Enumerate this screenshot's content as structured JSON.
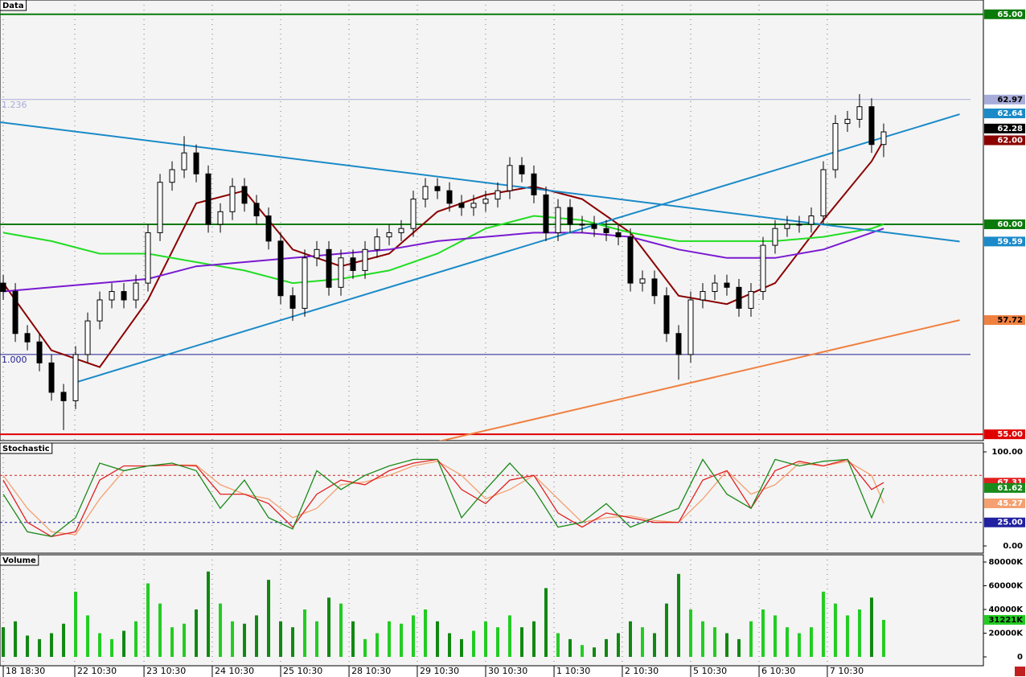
{
  "chart_data": [
    {
      "type": "candlestick",
      "title": "Data",
      "xlim": [
        -0.27,
        81.27
      ],
      "ylim": [
        54.85,
        65.34
      ],
      "xticks": [
        {
          "value": 0,
          "label": "18 18:30"
        },
        {
          "value": 5.93,
          "label": "22 10:30"
        },
        {
          "value": 11.67,
          "label": "23 10:30"
        },
        {
          "value": 17.33,
          "label": "24 10:30"
        },
        {
          "value": 23,
          "label": "25 10:30"
        },
        {
          "value": 28.67,
          "label": "28 10:30"
        },
        {
          "value": 34.33,
          "label": "29 10:30"
        },
        {
          "value": 40,
          "label": "30 10:30"
        },
        {
          "value": 45.67,
          "label": "1 10:30"
        },
        {
          "value": 51.33,
          "label": "2 10:30"
        },
        {
          "value": 57,
          "label": "5 10:30"
        },
        {
          "value": 62.67,
          "label": "6 10:30"
        },
        {
          "value": 68.33,
          "label": "7 10:30"
        }
      ],
      "open": [
        58.6,
        58.4,
        57.4,
        57.2,
        56.7,
        56.0,
        55.8,
        56.9,
        57.7,
        58.2,
        58.4,
        58.2,
        58.6,
        59.8,
        61.0,
        61.3,
        61.7,
        61.2,
        60.0,
        60.3,
        60.9,
        60.5,
        60.2,
        59.6,
        58.3,
        58.0,
        59.2,
        59.4,
        58.5,
        59.2,
        58.9,
        59.4,
        59.7,
        59.8,
        59.9,
        60.6,
        60.9,
        60.8,
        60.5,
        60.4,
        60.5,
        60.6,
        60.8,
        61.4,
        61.2,
        60.7,
        59.8,
        60.4,
        60.0,
        60.0,
        59.9,
        59.8,
        59.7,
        58.6,
        58.7,
        58.3,
        57.4,
        56.9,
        58.2,
        58.4,
        58.6,
        58.5,
        58.0,
        58.4,
        59.5,
        59.9,
        60.0,
        60.0,
        60.2,
        61.3,
        62.4,
        62.5,
        62.8,
        61.9
      ],
      "high": [
        58.8,
        58.6,
        57.6,
        57.4,
        56.9,
        56.2,
        57.1,
        57.9,
        58.4,
        58.6,
        58.6,
        58.8,
        60.0,
        61.2,
        61.5,
        62.1,
        61.9,
        61.4,
        60.5,
        61.1,
        61.1,
        60.7,
        60.4,
        59.8,
        58.5,
        59.4,
        59.6,
        59.6,
        59.4,
        59.4,
        59.6,
        59.9,
        60.0,
        60.1,
        60.8,
        61.1,
        61.1,
        61.0,
        60.7,
        60.7,
        60.8,
        61.0,
        61.6,
        61.6,
        61.4,
        60.9,
        60.6,
        60.6,
        60.2,
        60.2,
        60.1,
        60.0,
        59.9,
        58.9,
        58.9,
        58.5,
        57.6,
        58.4,
        58.6,
        58.8,
        58.8,
        58.7,
        58.6,
        59.7,
        60.1,
        60.2,
        60.2,
        60.4,
        61.5,
        62.6,
        62.7,
        63.1,
        63.0,
        62.4
      ],
      "low": [
        58.2,
        57.2,
        57.0,
        56.5,
        55.8,
        55.1,
        55.6,
        56.7,
        57.5,
        58.0,
        58.0,
        58.0,
        58.4,
        59.6,
        60.8,
        61.1,
        61.0,
        59.8,
        59.8,
        60.1,
        60.3,
        60.0,
        59.4,
        58.1,
        57.7,
        57.8,
        59.0,
        58.3,
        58.3,
        58.7,
        58.7,
        59.2,
        59.5,
        59.6,
        59.7,
        60.4,
        60.6,
        60.3,
        60.2,
        60.2,
        60.3,
        60.4,
        60.6,
        61.0,
        60.5,
        59.6,
        59.6,
        59.8,
        59.8,
        59.7,
        59.6,
        59.5,
        58.4,
        58.4,
        58.1,
        57.2,
        56.3,
        56.7,
        58.0,
        58.2,
        58.3,
        57.8,
        57.8,
        58.2,
        59.3,
        59.7,
        59.8,
        59.8,
        60.0,
        61.1,
        62.2,
        62.3,
        61.7,
        61.6
      ],
      "close": [
        58.4,
        57.4,
        57.2,
        56.7,
        56.0,
        55.8,
        56.9,
        57.7,
        58.2,
        58.4,
        58.2,
        58.6,
        59.8,
        61.0,
        61.3,
        61.7,
        61.2,
        60.0,
        60.3,
        60.9,
        60.5,
        60.2,
        59.6,
        58.3,
        58.0,
        59.2,
        59.4,
        58.5,
        59.2,
        58.9,
        59.4,
        59.7,
        59.8,
        59.9,
        60.6,
        60.9,
        60.8,
        60.5,
        60.4,
        60.5,
        60.6,
        60.8,
        61.4,
        61.2,
        60.7,
        59.8,
        60.4,
        60.0,
        60.0,
        59.9,
        59.8,
        59.7,
        58.6,
        58.7,
        58.3,
        57.4,
        56.9,
        58.2,
        58.4,
        58.6,
        58.5,
        58.0,
        58.4,
        59.5,
        59.9,
        60.0,
        60.0,
        60.2,
        61.3,
        62.4,
        62.5,
        62.8,
        61.9,
        62.2
      ],
      "overlays": [
        {
          "color": "#8b0000",
          "x": [
            0,
            4,
            8,
            12,
            16,
            20,
            24,
            28,
            32,
            36,
            40,
            44,
            48,
            52,
            56,
            60,
            64,
            68,
            72,
            73
          ],
          "values": [
            58.6,
            57.0,
            56.6,
            58.2,
            60.5,
            60.8,
            59.4,
            59.0,
            59.3,
            60.3,
            60.7,
            60.9,
            60.6,
            59.8,
            58.3,
            58.1,
            58.6,
            60.1,
            61.5,
            62.0
          ]
        },
        {
          "color": "#22dd22",
          "x": [
            0,
            4,
            8,
            12,
            16,
            20,
            24,
            28,
            32,
            36,
            40,
            44,
            48,
            52,
            56,
            60,
            64,
            68,
            72,
            73
          ],
          "values": [
            59.8,
            59.6,
            59.3,
            59.3,
            59.1,
            58.9,
            58.6,
            58.7,
            58.9,
            59.3,
            59.9,
            60.2,
            60.1,
            59.8,
            59.6,
            59.6,
            59.6,
            59.7,
            59.9,
            60.0
          ]
        },
        {
          "color": "#7a1ad0",
          "x": [
            0,
            4,
            8,
            12,
            16,
            20,
            24,
            28,
            32,
            36,
            40,
            44,
            48,
            52,
            56,
            60,
            64,
            68,
            72,
            73
          ],
          "values": [
            58.4,
            58.5,
            58.6,
            58.7,
            59.0,
            59.1,
            59.2,
            59.3,
            59.4,
            59.6,
            59.7,
            59.8,
            59.8,
            59.7,
            59.4,
            59.2,
            59.2,
            59.4,
            59.8,
            59.9
          ]
        }
      ],
      "trendlines": [
        {
          "color": "#1a8ac8",
          "x": [
            -0.27,
            79.3
          ],
          "values": [
            62.43,
            59.59
          ]
        },
        {
          "color": "#1a8ac8",
          "x": [
            5.93,
            79.3
          ],
          "values": [
            56.23,
            62.62
          ]
        },
        {
          "color": "#f08040",
          "x": [
            35.8,
            79.3
          ],
          "values": [
            54.81,
            57.72
          ]
        }
      ],
      "hlines": [
        {
          "value": 65,
          "color": "#0a7a0a"
        },
        {
          "value": 60,
          "color": "#0a7a0a"
        },
        {
          "value": 55,
          "color": "#e00000"
        }
      ],
      "fib": [
        {
          "label": "1.236",
          "value": 62.97,
          "color": "#a8acd8"
        },
        {
          "label": "1.000",
          "value": 56.9,
          "color": "#202090"
        }
      ],
      "tags": [
        {
          "value": 65,
          "label": "65.00",
          "color": "#0a7a0a",
          "text_color": "#ffffff"
        },
        {
          "value": 62.97,
          "label": "62.97",
          "color": "#a8acd8",
          "text_color": "#000000"
        },
        {
          "value": 62.64,
          "label": "62.64",
          "color": "#1a8ac8",
          "text_color": "#ffffff"
        },
        {
          "value": 62.28,
          "label": "62.28",
          "color": "#000000",
          "text_color": "#ffffff"
        },
        {
          "value": 62.0,
          "label": "62.00",
          "color": "#8b0000",
          "text_color": "#ffffff"
        },
        {
          "value": 60,
          "label": "60.00",
          "color": "#0a7a0a",
          "text_color": "#ffffff"
        },
        {
          "value": 59.59,
          "label": "59.59",
          "color": "#1a8ac8",
          "text_color": "#ffffff"
        },
        {
          "value": 57.72,
          "label": "57.72",
          "color": "#f08040",
          "text_color": "#000000"
        },
        {
          "value": 55,
          "label": "55.00",
          "color": "#e00000",
          "text_color": "#ffffff"
        }
      ]
    },
    {
      "type": "line",
      "title": "Stochastic",
      "ylim": [
        -7.7,
        109.4
      ],
      "yticks": [
        {
          "value": 100,
          "label": "100.00"
        },
        {
          "value": 0,
          "label": "0.00"
        }
      ],
      "x": [
        0,
        2,
        4,
        6,
        8,
        10,
        12,
        14,
        16,
        18,
        20,
        22,
        24,
        26,
        28,
        30,
        32,
        34,
        36,
        38,
        40,
        42,
        44,
        46,
        48,
        50,
        52,
        54,
        56,
        58,
        60,
        62,
        64,
        66,
        68,
        70,
        72,
        73
      ],
      "series": [
        {
          "color": "#f4a070",
          "values": [
            75,
            40,
            15,
            12,
            50,
            80,
            85,
            86,
            86,
            65,
            55,
            50,
            30,
            40,
            65,
            68,
            75,
            85,
            90,
            75,
            50,
            60,
            75,
            50,
            25,
            30,
            32,
            27,
            25,
            50,
            80,
            55,
            65,
            88,
            85,
            90,
            75,
            45.27
          ]
        },
        {
          "color": "#e02020",
          "values": [
            70,
            25,
            10,
            15,
            70,
            85,
            85,
            86,
            85,
            55,
            55,
            45,
            20,
            55,
            70,
            65,
            80,
            88,
            92,
            60,
            45,
            70,
            75,
            35,
            20,
            35,
            30,
            25,
            25,
            70,
            80,
            40,
            80,
            90,
            85,
            92,
            60,
            67.31
          ]
        },
        {
          "color": "#1a8a1a",
          "values": [
            55,
            15,
            10,
            30,
            88,
            80,
            85,
            88,
            80,
            40,
            70,
            30,
            18,
            80,
            60,
            75,
            85,
            92,
            92,
            30,
            60,
            88,
            60,
            20,
            25,
            45,
            20,
            30,
            40,
            92,
            55,
            40,
            92,
            85,
            90,
            92,
            30,
            61.62
          ]
        }
      ],
      "levels": [
        {
          "value": 75,
          "color": "#d02020"
        },
        {
          "value": 25,
          "color": "#2020a0"
        }
      ],
      "tags": [
        {
          "value": 67.31,
          "label": "67.31",
          "color": "#e02020",
          "text_color": "#ffffff"
        },
        {
          "value": 61.62,
          "label": "61.62",
          "color": "#1a8a1a",
          "text_color": "#ffffff"
        },
        {
          "value": 45.27,
          "label": "45.27",
          "color": "#f4a070",
          "text_color": "#ffffff"
        },
        {
          "value": 25,
          "label": "25.00",
          "color": "#2020a0",
          "text_color": "#ffffff"
        }
      ]
    },
    {
      "type": "bar",
      "title": "Volume",
      "ylim": [
        -7458,
        86100
      ],
      "yticks": [
        {
          "value": 80000,
          "label": "80000K"
        },
        {
          "value": 60000,
          "label": "60000K"
        },
        {
          "value": 40000,
          "label": "40000K"
        },
        {
          "value": 20000,
          "label": "20000K"
        },
        0
      ],
      "up_color": "#22cc22",
      "down_color": "#118811",
      "values": [
        25000,
        30000,
        18000,
        15000,
        20000,
        28000,
        55000,
        35000,
        20000,
        15000,
        22000,
        30000,
        62000,
        45000,
        25000,
        28000,
        40000,
        72000,
        45000,
        30000,
        28000,
        35000,
        65000,
        30000,
        25000,
        40000,
        30000,
        50000,
        45000,
        30000,
        15000,
        20000,
        30000,
        28000,
        35000,
        40000,
        30000,
        20000,
        15000,
        22000,
        30000,
        25000,
        35000,
        25000,
        30000,
        58000,
        20000,
        15000,
        10000,
        8000,
        15000,
        20000,
        30000,
        25000,
        20000,
        45000,
        70000,
        40000,
        30000,
        25000,
        20000,
        15000,
        30000,
        40000,
        35000,
        25000,
        20000,
        25000,
        55000,
        45000,
        35000,
        40000,
        50000,
        31221
      ],
      "tags": [
        {
          "value": 31221,
          "label": "31221K",
          "color": "#22cc22",
          "text_color": "#000000"
        }
      ]
    }
  ]
}
